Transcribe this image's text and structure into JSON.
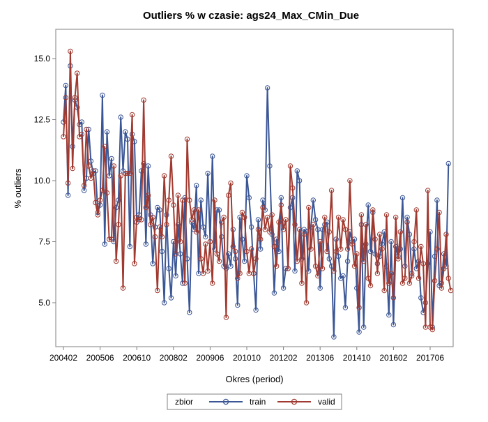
{
  "chart_data": {
    "type": "line",
    "title": "Outliers % w czasie: ags24_Max_CMin_Due",
    "xlabel": "Okres (period)",
    "ylabel": "% outliers",
    "x_ticks": [
      "200402",
      "200506",
      "200610",
      "200802",
      "200906",
      "201010",
      "201202",
      "201306",
      "201410",
      "201602",
      "201706"
    ],
    "ylim": [
      3.2,
      16.2
    ],
    "y_ticks": [
      5.0,
      7.5,
      10.0,
      12.5,
      15.0
    ],
    "y_tick_labels": [
      "5.0",
      "7.5",
      "10.0",
      "12.5",
      "15.0"
    ],
    "x_start": "200402",
    "period_count": 168,
    "legend": {
      "title": "zbior",
      "position": "bottom"
    },
    "series": [
      {
        "name": "train",
        "color": "#3b5695",
        "values": [
          12.4,
          13.9,
          9.4,
          14.7,
          11.4,
          13.3,
          13.0,
          12.3,
          12.4,
          9.6,
          10.1,
          12.1,
          10.8,
          10.3,
          10.4,
          8.7,
          9.0,
          13.5,
          7.4,
          12.0,
          10.2,
          10.9,
          7.5,
          8.9,
          9.2,
          12.6,
          10.4,
          12.0,
          11.7,
          7.3,
          11.9,
          11.6,
          8.3,
          8.6,
          10.4,
          10.7,
          7.4,
          10.6,
          8.6,
          6.6,
          8.1,
          8.9,
          8.8,
          7.1,
          5.0,
          8.6,
          6.4,
          5.2,
          7.5,
          6.1,
          8.2,
          7.0,
          5.8,
          9.3,
          6.8,
          4.6,
          8.3,
          8.0,
          9.8,
          6.2,
          9.2,
          8.1,
          7.7,
          10.3,
          7.5,
          11.0,
          7.2,
          8.8,
          8.8,
          7.7,
          6.5,
          6.4,
          7.0,
          6.5,
          8.0,
          6.8,
          4.9,
          8.5,
          7.6,
          6.7,
          10.2,
          9.3,
          8.1,
          6.2,
          4.7,
          8.4,
          7.2,
          9.2,
          8.8,
          13.8,
          10.6,
          7.8,
          5.4,
          7.6,
          7.1,
          9.3,
          5.6,
          6.4,
          6.4,
          8.9,
          9.3,
          6.3,
          10.4,
          10.0,
          6.8,
          8.0,
          7.9,
          6.3,
          8.1,
          9.2,
          8.4,
          8.0,
          5.6,
          8.0,
          8.2,
          8.3,
          6.8,
          6.5,
          3.6,
          7.6,
          6.9,
          6.0,
          6.1,
          4.8,
          6.7,
          7.9,
          7.5,
          7.6,
          5.6,
          3.8,
          8.2,
          4.0,
          7.4,
          9.0,
          7.1,
          8.7,
          7.0,
          6.6,
          6.9,
          7.4,
          7.9,
          6.5,
          4.5,
          7.5,
          4.1,
          7.3,
          6.9,
          7.2,
          9.3,
          6.5,
          8.5,
          7.8,
          6.2,
          7.2,
          6.4,
          6.7,
          5.2,
          4.6,
          5.0,
          6.6,
          7.9,
          4.0,
          6.9,
          9.2,
          5.7,
          5.8,
          7.0,
          6.5,
          10.7
        ]
      },
      {
        "name": "valid",
        "color": "#a0392f",
        "values": [
          11.8,
          13.4,
          9.9,
          15.3,
          10.5,
          13.4,
          14.4,
          11.8,
          11.9,
          9.8,
          12.1,
          10.6,
          10.1,
          10.4,
          9.1,
          8.6,
          9.2,
          9.6,
          11.4,
          9.5,
          7.6,
          7.6,
          10.6,
          6.7,
          8.2,
          10.2,
          5.6,
          10.3,
          10.3,
          10.3,
          12.7,
          6.6,
          8.5,
          8.4,
          8.4,
          13.3,
          8.9,
          9.4,
          8.2,
          8.5,
          7.7,
          5.5,
          8.1,
          7.7,
          10.2,
          8.2,
          9.2,
          11.0,
          9.0,
          7.0,
          9.4,
          7.5,
          9.2,
          5.8,
          11.7,
          9.2,
          8.4,
          8.8,
          7.9,
          8.8,
          6.8,
          6.2,
          7.4,
          6.3,
          7.5,
          5.8,
          9.2,
          7.0,
          6.7,
          8.3,
          8.5,
          4.4,
          9.4,
          9.9,
          7.3,
          7.1,
          6.0,
          6.2,
          8.7,
          8.5,
          7.1,
          6.2,
          7.2,
          6.2,
          6.8,
          8.0,
          7.6,
          8.9,
          8.0,
          8.5,
          7.9,
          8.6,
          7.3,
          6.5,
          8.3,
          9.0,
          8.0,
          8.4,
          6.4,
          10.6,
          9.7,
          8.2,
          6.7,
          8.0,
          5.8,
          7.8,
          5.0,
          8.9,
          7.2,
          8.2,
          6.5,
          6.1,
          7.5,
          6.4,
          8.5,
          7.1,
          7.9,
          9.6,
          6.3,
          7.1,
          8.5,
          7.2,
          8.4,
          8.0,
          7.2,
          10.0,
          7.4,
          6.5,
          7.0,
          4.8,
          8.6,
          6.7,
          8.2,
          6.0,
          5.7,
          8.8,
          7.6,
          6.2,
          7.8,
          7.2,
          5.5,
          8.6,
          5.8,
          6.2,
          5.2,
          8.5,
          6.8,
          7.9,
          5.8,
          6.0,
          8.3,
          5.8,
          6.1,
          7.5,
          8.8,
          6.0,
          7.3,
          6.6,
          4.0,
          9.6,
          4.0,
          3.9,
          5.9,
          7.2,
          8.7,
          5.6,
          6.4,
          7.8,
          6.0,
          5.5
        ]
      }
    ]
  }
}
